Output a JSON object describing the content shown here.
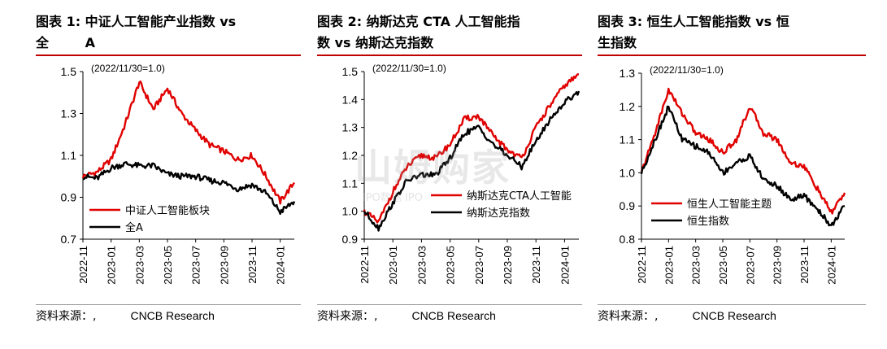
{
  "panels": [
    {
      "title": "图表 1: 中证人工智能产业指数 vs\n全        A",
      "source_cn": "资料来源：,",
      "source_en": "CNCB Research"
    },
    {
      "title": "图表 2: 纳斯达克 CTA 人工智能指\n数 vs 纳斯达克指数",
      "source_cn": "资料来源：,",
      "source_en": "CNCB Research"
    },
    {
      "title": "图表 3: 恒生人工智能指数 vs 恒\n生指数",
      "source_cn": "资料来源：,",
      "source_en": "CNCB Research"
    }
  ],
  "watermark": {
    "main": "山姆购家",
    "sub": "IPO数据 IPO"
  },
  "chart_data": [
    {
      "type": "line",
      "annotation": "(2022/11/30=1.0)",
      "ylim": [
        0.7,
        1.5
      ],
      "yticks": [
        "0.7",
        "0.9",
        "1.1",
        "1.3",
        "1.5"
      ],
      "xticks": [
        "2022-11",
        "2023-01",
        "2023-03",
        "2023-05",
        "2023-07",
        "2023-09",
        "2023-11",
        "2024-01"
      ],
      "xrange": [
        "2022-11",
        "2024-02"
      ],
      "legend_position": "lower-left",
      "series": [
        {
          "name": "中证人工智能板块",
          "color": "#e00000",
          "x": [
            "2022-11",
            "2022-12",
            "2023-01",
            "2023-02",
            "2023-03",
            "2023-04",
            "2023-05",
            "2023-06",
            "2023-07",
            "2023-08",
            "2023-09",
            "2023-10",
            "2023-11",
            "2023-12",
            "2024-01",
            "2024-02"
          ],
          "values": [
            1.0,
            1.02,
            1.08,
            1.25,
            1.45,
            1.32,
            1.42,
            1.3,
            1.22,
            1.15,
            1.12,
            1.08,
            1.1,
            1.0,
            0.88,
            0.97
          ]
        },
        {
          "name": "全A",
          "color": "#000000",
          "x": [
            "2022-11",
            "2022-12",
            "2023-01",
            "2023-02",
            "2023-03",
            "2023-04",
            "2023-05",
            "2023-06",
            "2023-07",
            "2023-08",
            "2023-09",
            "2023-10",
            "2023-11",
            "2023-12",
            "2024-01",
            "2024-02"
          ],
          "values": [
            1.0,
            0.99,
            1.04,
            1.06,
            1.05,
            1.05,
            1.01,
            1.0,
            1.0,
            0.98,
            0.97,
            0.94,
            0.96,
            0.92,
            0.83,
            0.88
          ]
        }
      ]
    },
    {
      "type": "line",
      "annotation": "(2022/11/30=1.0)",
      "ylim": [
        0.9,
        1.5
      ],
      "yticks": [
        "0.9",
        "1.0",
        "1.1",
        "1.2",
        "1.3",
        "1.4",
        "1.5"
      ],
      "xticks": [
        "2022-11",
        "2023-01",
        "2023-03",
        "2023-05",
        "2023-07",
        "2023-09",
        "2023-11",
        "2024-01"
      ],
      "xrange": [
        "2022-11",
        "2024-02"
      ],
      "legend_position": "lower-right",
      "series": [
        {
          "name": "纳斯达克CTA人工智能",
          "color": "#e00000",
          "x": [
            "2022-11",
            "2022-12",
            "2023-01",
            "2023-02",
            "2023-03",
            "2023-04",
            "2023-05",
            "2023-06",
            "2023-07",
            "2023-08",
            "2023-09",
            "2023-10",
            "2023-11",
            "2023-12",
            "2024-01",
            "2024-02"
          ],
          "values": [
            1.0,
            0.96,
            1.07,
            1.16,
            1.2,
            1.19,
            1.24,
            1.33,
            1.34,
            1.27,
            1.22,
            1.19,
            1.3,
            1.38,
            1.45,
            1.49
          ]
        },
        {
          "name": "纳斯达克指数",
          "color": "#000000",
          "x": [
            "2022-11",
            "2022-12",
            "2023-01",
            "2023-02",
            "2023-03",
            "2023-04",
            "2023-05",
            "2023-06",
            "2023-07",
            "2023-08",
            "2023-09",
            "2023-10",
            "2023-11",
            "2023-12",
            "2024-01",
            "2024-02"
          ],
          "values": [
            1.0,
            0.94,
            1.03,
            1.11,
            1.13,
            1.13,
            1.19,
            1.28,
            1.3,
            1.24,
            1.2,
            1.16,
            1.25,
            1.33,
            1.39,
            1.43
          ]
        }
      ]
    },
    {
      "type": "line",
      "annotation": "(2022/11/30=1.0)",
      "ylim": [
        0.8,
        1.3
      ],
      "yticks": [
        "0.8",
        "0.9",
        "1.0",
        "1.1",
        "1.2",
        "1.3"
      ],
      "xticks": [
        "2022-11",
        "2023-01",
        "2023-03",
        "2023-05",
        "2023-07",
        "2023-09",
        "2023-11",
        "2024-01"
      ],
      "xrange": [
        "2022-11",
        "2024-02"
      ],
      "legend_position": "lower-left",
      "series": [
        {
          "name": "恒生人工智能主题",
          "color": "#e00000",
          "x": [
            "2022-11",
            "2022-12",
            "2023-01",
            "2023-02",
            "2023-03",
            "2023-04",
            "2023-05",
            "2023-06",
            "2023-07",
            "2023-08",
            "2023-09",
            "2023-10",
            "2023-11",
            "2023-12",
            "2024-01",
            "2024-02"
          ],
          "values": [
            1.0,
            1.12,
            1.25,
            1.18,
            1.12,
            1.1,
            1.06,
            1.1,
            1.2,
            1.12,
            1.1,
            1.03,
            1.02,
            0.95,
            0.88,
            0.94
          ]
        },
        {
          "name": "恒生指数",
          "color": "#000000",
          "x": [
            "2022-11",
            "2022-12",
            "2023-01",
            "2023-02",
            "2023-03",
            "2023-04",
            "2023-05",
            "2023-06",
            "2023-07",
            "2023-08",
            "2023-09",
            "2023-10",
            "2023-11",
            "2023-12",
            "2024-01",
            "2024-02"
          ],
          "values": [
            1.0,
            1.1,
            1.2,
            1.1,
            1.08,
            1.06,
            1.0,
            1.03,
            1.05,
            0.98,
            0.96,
            0.92,
            0.93,
            0.89,
            0.84,
            0.9
          ]
        }
      ]
    }
  ]
}
